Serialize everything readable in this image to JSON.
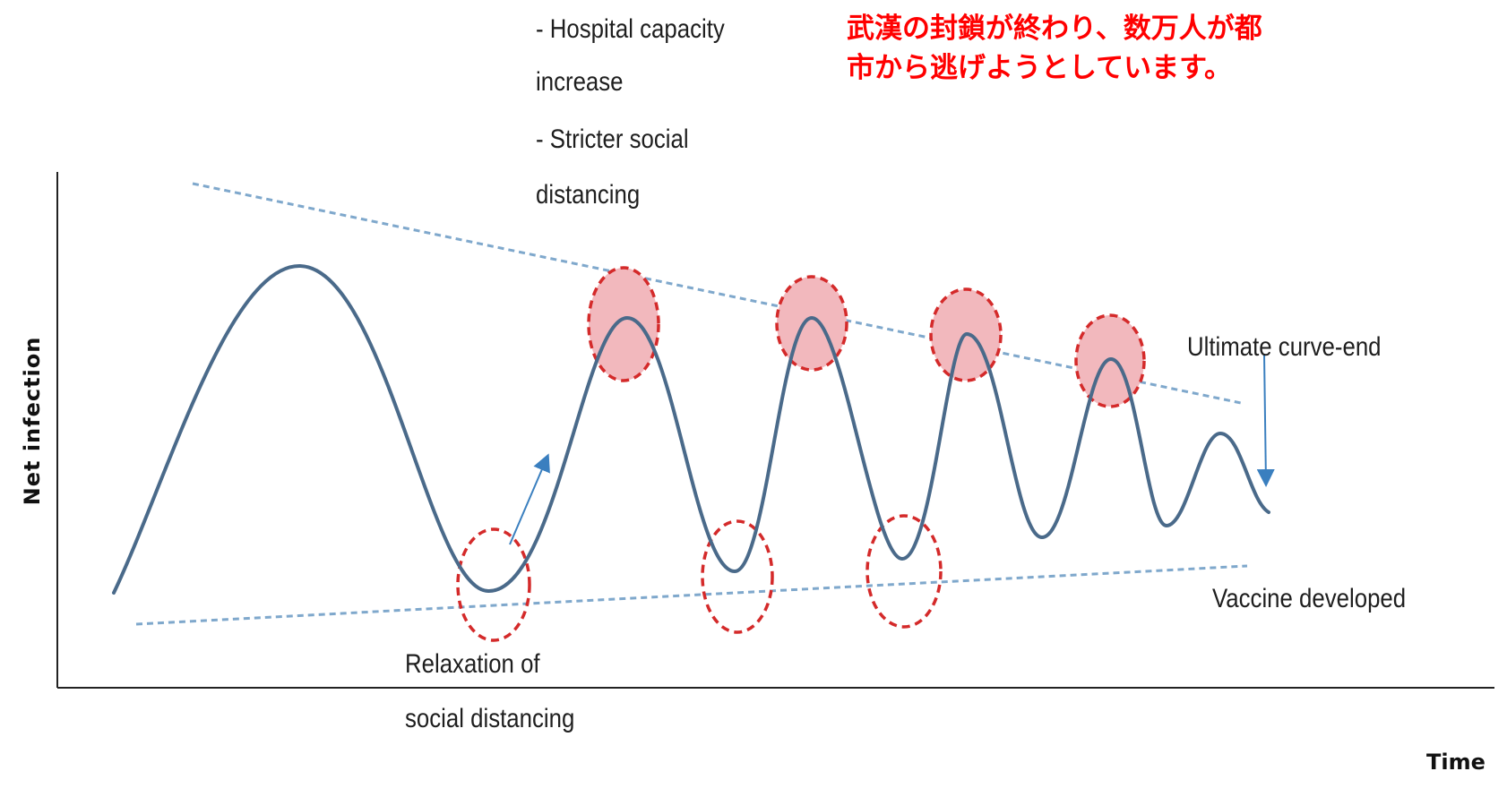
{
  "headline": {
    "line1": "武漢の封鎖が終わり、数万人が都",
    "line2": "市から逃げようとしています。"
  },
  "axes": {
    "x_label": "Time",
    "y_label": "Net infection"
  },
  "notes": {
    "intervention": [
      "- Hospital capacity",
      "increase",
      "- Stricter social",
      "distancing"
    ],
    "relaxation": [
      "Relaxation of",
      "social distancing"
    ],
    "curve_end": "Ultimate curve-end",
    "vaccine": "Vaccine developed"
  },
  "colors": {
    "curve": "#4a6a8a",
    "trend_lines": "#7fa8cc",
    "arrow": "#3a7fbf",
    "circle_stroke": "#d42a2a",
    "circle_fill": "#f2b8bd",
    "headline": "#ff0000"
  },
  "icons": {
    "peak_markers": "dashed-filled-circle",
    "trough_markers": "dashed-hollow-circle",
    "arrows": "arrow-up-right, arrow-down"
  }
}
